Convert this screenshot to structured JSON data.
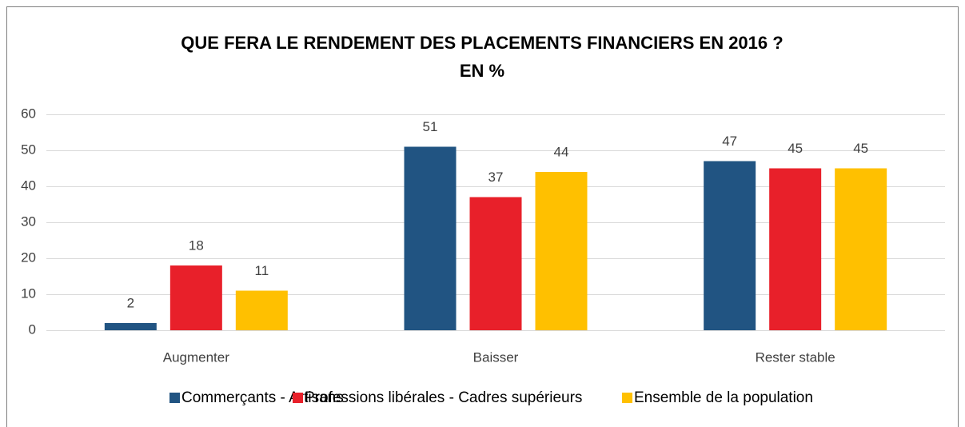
{
  "chart_data": {
    "type": "bar",
    "title": "QUE FERA LE RENDEMENT DES PLACEMENTS FINANCIERS EN 2016 ?",
    "subtitle": "EN %",
    "categories": [
      "Augmenter",
      "Baisser",
      "Rester stable"
    ],
    "series": [
      {
        "name": "Commerçants - Artisans",
        "color": "#215482",
        "values": [
          2,
          51,
          47
        ]
      },
      {
        "name": "Professions libérales - Cadres supérieurs",
        "color": "#e8202a",
        "values": [
          18,
          37,
          45
        ]
      },
      {
        "name": "Ensemble de la population",
        "color": "#ffc000",
        "values": [
          11,
          44,
          45
        ]
      }
    ],
    "ylim": [
      0,
      60
    ],
    "yticks": [
      0,
      10,
      20,
      30,
      40,
      50,
      60
    ],
    "grid": true,
    "legend": "bottom"
  }
}
